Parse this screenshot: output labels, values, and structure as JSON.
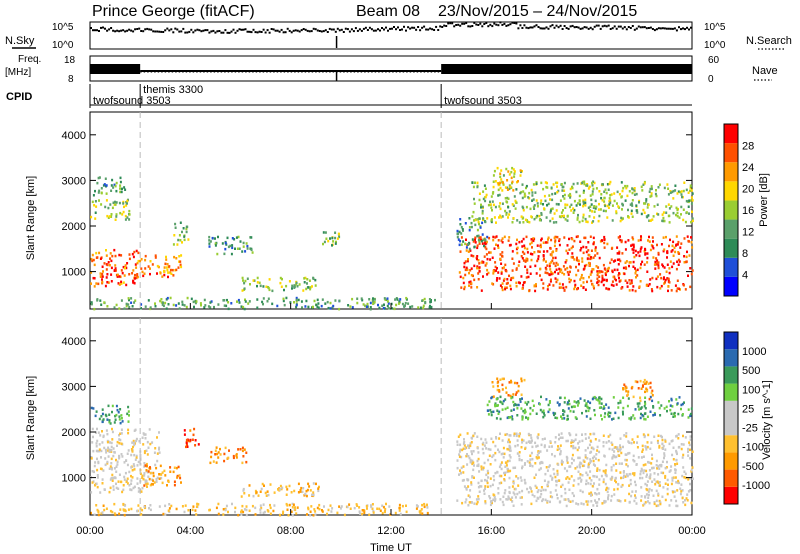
{
  "header": {
    "title": "Prince George (fitACF)",
    "beam_label": "Beam 08",
    "date_range": "23/Nov/2015 – 24/Nov/2015"
  },
  "top_panels": {
    "nsky_label": "N.Sky",
    "nsky_ticks": [
      "10^5",
      "10^0"
    ],
    "nsearch_label": "N.Search",
    "nsearch_ticks": [
      "10^5",
      "10^0"
    ],
    "freq_label": "Freq.",
    "freq_unit": "[MHz]",
    "freq_ticks": [
      "18",
      "8"
    ],
    "nave_label": "Nave",
    "nave_ticks": [
      "60",
      "0"
    ],
    "cpid_label": "CPID",
    "cpid_segments": [
      {
        "name": "twofsound 3503",
        "start": 0
      },
      {
        "name": "themis 3300",
        "start": 2
      },
      {
        "name": "twofsound 3503",
        "start": 14
      }
    ]
  },
  "colors": {
    "power": [
      "#0000ff",
      "#1f4fd8",
      "#2e8b57",
      "#5aa06a",
      "#9acd32",
      "#ffd700",
      "#ff9a00",
      "#ff5000",
      "#ff0000"
    ],
    "velocity": [
      "#ff0000",
      "#ff5a00",
      "#ff9a00",
      "#ffc030",
      "#c8c8c8",
      "#c8c8c8",
      "#6fcf40",
      "#3a9a5a",
      "#2a6ab0",
      "#1030c0"
    ]
  },
  "chart_data": [
    {
      "type": "heatmap",
      "name": "power",
      "ylabel": "Slant Range [km]",
      "ylim": [
        180,
        4500
      ],
      "yticks": [
        1000,
        2000,
        3000,
        4000
      ],
      "xlim": [
        0,
        24
      ],
      "colorbar": {
        "label": "Power [dB]",
        "range": [
          0,
          30
        ],
        "ticks": [
          4,
          8,
          12,
          16,
          20,
          24,
          28
        ]
      },
      "regions": [
        {
          "x0": 0.0,
          "x1": 1.9,
          "y0": 700,
          "y1": 1500,
          "level": 26
        },
        {
          "x0": 0.0,
          "x1": 1.6,
          "y0": 2150,
          "y1": 2600,
          "level": 15
        },
        {
          "x0": 0.1,
          "x1": 1.4,
          "y0": 2700,
          "y1": 3100,
          "level": 10
        },
        {
          "x0": 1.8,
          "x1": 3.6,
          "y0": 900,
          "y1": 1400,
          "level": 24
        },
        {
          "x0": 3.3,
          "x1": 3.9,
          "y0": 1600,
          "y1": 2100,
          "level": 12
        },
        {
          "x0": 4.7,
          "x1": 6.5,
          "y0": 1400,
          "y1": 1800,
          "level": 10
        },
        {
          "x0": 6.0,
          "x1": 9.0,
          "y0": 600,
          "y1": 900,
          "level": 14
        },
        {
          "x0": 9.2,
          "x1": 10.0,
          "y0": 1600,
          "y1": 1900,
          "level": 12
        },
        {
          "x0": 0.0,
          "x1": 13.8,
          "y0": 200,
          "y1": 450,
          "level": 10
        },
        {
          "x0": 14.7,
          "x1": 24.0,
          "y0": 600,
          "y1": 1800,
          "level": 27
        },
        {
          "x0": 15.2,
          "x1": 24.0,
          "y0": 2100,
          "y1": 3000,
          "level": 14
        },
        {
          "x0": 16.0,
          "x1": 17.2,
          "y0": 2800,
          "y1": 3300,
          "level": 18
        },
        {
          "x0": 14.6,
          "x1": 15.8,
          "y0": 1500,
          "y1": 2200,
          "level": 10
        }
      ]
    },
    {
      "type": "heatmap",
      "name": "velocity",
      "ylabel": "Slant Range [km]",
      "xlabel": "Time UT",
      "ylim": [
        180,
        4500
      ],
      "yticks": [
        1000,
        2000,
        3000,
        4000
      ],
      "xlim": [
        0,
        24
      ],
      "xticks": [
        "00:00",
        "04:00",
        "08:00",
        "12:00",
        "16:00",
        "20:00",
        "00:00"
      ],
      "colorbar": {
        "label": "Velocity [m s^-1]",
        "ticks": [
          "1000",
          "500",
          "100",
          "25",
          "-25",
          "-100",
          "-500",
          "-1000"
        ]
      },
      "regions": [
        {
          "x0": 0.0,
          "x1": 2.8,
          "y0": 700,
          "y1": 2100,
          "vclass": 4
        },
        {
          "x0": 0.0,
          "x1": 1.6,
          "y0": 2200,
          "y1": 2600,
          "vclass": 7
        },
        {
          "x0": 2.0,
          "x1": 3.6,
          "y0": 850,
          "y1": 1300,
          "vclass": 2
        },
        {
          "x0": 3.7,
          "x1": 4.3,
          "y0": 1700,
          "y1": 2100,
          "vclass": 1
        },
        {
          "x0": 4.7,
          "x1": 6.2,
          "y0": 1350,
          "y1": 1700,
          "vclass": 2
        },
        {
          "x0": 6.0,
          "x1": 9.2,
          "y0": 600,
          "y1": 900,
          "vclass": 3
        },
        {
          "x0": 0.0,
          "x1": 13.5,
          "y0": 200,
          "y1": 450,
          "vclass": 3
        },
        {
          "x0": 14.6,
          "x1": 24.0,
          "y0": 400,
          "y1": 2000,
          "vclass": 4
        },
        {
          "x0": 15.8,
          "x1": 24.0,
          "y0": 2300,
          "y1": 2800,
          "vclass": 7
        },
        {
          "x0": 16.0,
          "x1": 17.3,
          "y0": 2800,
          "y1": 3200,
          "vclass": 2
        },
        {
          "x0": 21.2,
          "x1": 22.4,
          "y0": 2700,
          "y1": 3200,
          "vclass": 2
        }
      ]
    }
  ]
}
